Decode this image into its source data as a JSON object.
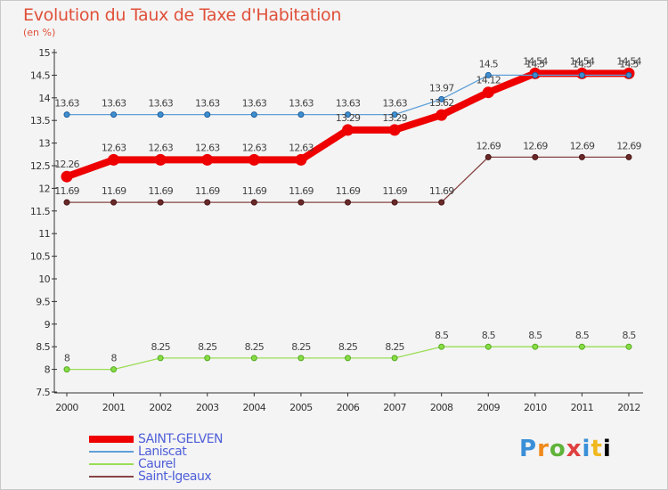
{
  "header": {
    "title": "Evolution du Taux de Taxe d'Habitation",
    "unit": "(en %)"
  },
  "logo": {
    "text": "Proxiti"
  },
  "chart_data": {
    "type": "line",
    "title": "Evolution du Taux de Taxe d'Habitation",
    "ylabel": "(en %)",
    "xlabel": "",
    "ylim": [
      7.5,
      15
    ],
    "yticks": [
      "7.5",
      "8",
      "8.5",
      "9",
      "9.5",
      "10",
      "10.5",
      "11",
      "11.5",
      "12",
      "12.5",
      "13",
      "13.5",
      "14",
      "14.5",
      "15"
    ],
    "categories": [
      "2000",
      "2001",
      "2002",
      "2003",
      "2004",
      "2005",
      "2006",
      "2007",
      "2008",
      "2009",
      "2010",
      "2011",
      "2012"
    ],
    "grid": false,
    "legend_position": "bottom-left",
    "series": [
      {
        "name": "SAINT-GELVEN",
        "color": "#ee0000",
        "values": [
          12.26,
          12.63,
          12.63,
          12.63,
          12.63,
          12.63,
          13.29,
          13.29,
          13.62,
          14.12,
          14.54,
          14.54,
          14.54
        ],
        "labels": [
          "12.26",
          "12.63",
          "12.63",
          "12.63",
          "12.63",
          "12.63",
          "13.29",
          "13.29",
          "13.62",
          "14.12",
          "14.54",
          "14.54",
          "14.54"
        ]
      },
      {
        "name": "Laniscat",
        "color": "#5fa0d8",
        "values": [
          13.63,
          13.63,
          13.63,
          13.63,
          13.63,
          13.63,
          13.63,
          13.63,
          13.97,
          14.5,
          14.5,
          14.5,
          14.5
        ],
        "labels": [
          "13.63",
          "13.63",
          "13.63",
          "13.63",
          "13.63",
          "13.63",
          "13.63",
          "13.63",
          "13.97",
          "14.5",
          "14.5",
          "14.5",
          "14.5"
        ]
      },
      {
        "name": "Caurel",
        "color": "#99dd55",
        "values": [
          8,
          8,
          8.25,
          8.25,
          8.25,
          8.25,
          8.25,
          8.25,
          8.5,
          8.5,
          8.5,
          8.5,
          8.5
        ],
        "labels": [
          "8",
          "8",
          "8.25",
          "8.25",
          "8.25",
          "8.25",
          "8.25",
          "8.25",
          "8.5",
          "8.5",
          "8.5",
          "8.5",
          "8.5"
        ]
      },
      {
        "name": "Saint-Igeaux",
        "color": "#884444",
        "values": [
          11.69,
          11.69,
          11.69,
          11.69,
          11.69,
          11.69,
          11.69,
          11.69,
          11.69,
          12.69,
          12.69,
          12.69,
          12.69
        ],
        "labels": [
          "11.69",
          "11.69",
          "11.69",
          "11.69",
          "11.69",
          "11.69",
          "11.69",
          "11.69",
          "11.69",
          "12.69",
          "12.69",
          "12.69",
          "12.69"
        ]
      }
    ]
  }
}
